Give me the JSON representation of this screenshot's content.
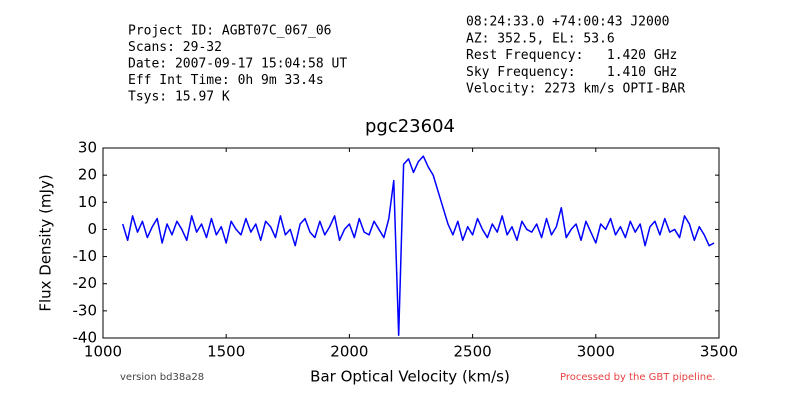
{
  "chart_data": {
    "type": "line",
    "title": "pgc23604",
    "header_left": [
      "Project ID: AGBT07C_067_06",
      "Scans: 29-32",
      "Date: 2007-09-17 15:04:58 UT",
      "Eff Int Time: 0h 9m 33.4s",
      "Tsys: 15.97 K"
    ],
    "header_right": [
      "08:24:33.0 +74:00:43 J2000",
      "AZ: 352.5, EL: 53.6",
      "Rest Frequency:   1.420 GHz",
      "Sky Frequency:    1.410 GHz",
      "Velocity: 2273 km/s OPTI-BAR"
    ],
    "footer_left": "version bd38a28",
    "footer_right": "Processed by the GBT pipeline.",
    "xlabel": "Bar Optical Velocity (km/s)",
    "ylabel": "Flux Density (mJy)",
    "xlim": [
      1000,
      3500
    ],
    "xticks": [
      1000,
      1500,
      2000,
      2500,
      3000,
      3500
    ],
    "ylim": [
      -40,
      30
    ],
    "yticks": [
      -40,
      -30,
      -20,
      -10,
      0,
      10,
      20,
      30
    ],
    "color": "#0000ff",
    "x": [
      1080,
      1100,
      1120,
      1140,
      1160,
      1180,
      1200,
      1220,
      1240,
      1260,
      1280,
      1300,
      1320,
      1340,
      1360,
      1380,
      1400,
      1420,
      1440,
      1460,
      1480,
      1500,
      1520,
      1540,
      1560,
      1580,
      1600,
      1620,
      1640,
      1660,
      1680,
      1700,
      1720,
      1740,
      1760,
      1780,
      1800,
      1820,
      1840,
      1860,
      1880,
      1900,
      1920,
      1940,
      1960,
      1980,
      2000,
      2020,
      2040,
      2060,
      2080,
      2100,
      2120,
      2140,
      2160,
      2180,
      2200,
      2220,
      2240,
      2260,
      2280,
      2300,
      2320,
      2340,
      2360,
      2380,
      2400,
      2420,
      2440,
      2460,
      2480,
      2500,
      2520,
      2540,
      2560,
      2580,
      2600,
      2620,
      2640,
      2660,
      2680,
      2700,
      2720,
      2740,
      2760,
      2780,
      2800,
      2820,
      2840,
      2860,
      2880,
      2900,
      2920,
      2940,
      2960,
      2980,
      3000,
      3020,
      3040,
      3060,
      3080,
      3100,
      3120,
      3140,
      3160,
      3180,
      3200,
      3220,
      3240,
      3260,
      3280,
      3300,
      3320,
      3340,
      3360,
      3380,
      3400,
      3420,
      3440,
      3460,
      3480
    ],
    "values": [
      2,
      -4,
      5,
      -1,
      3,
      -3,
      1,
      4,
      -5,
      2,
      -2,
      3,
      0,
      -4,
      5,
      -1,
      2,
      -3,
      4,
      -2,
      1,
      -5,
      3,
      0,
      -2,
      4,
      -1,
      2,
      -4,
      3,
      1,
      -3,
      5,
      -2,
      0,
      -6,
      2,
      4,
      -1,
      -3,
      3,
      -2,
      1,
      5,
      -4,
      0,
      2,
      -3,
      4,
      -1,
      -2,
      3,
      0,
      -3,
      4,
      18,
      -39,
      24,
      26,
      21,
      25,
      27,
      23,
      20,
      14,
      8,
      2,
      -2,
      3,
      -4,
      1,
      -2,
      4,
      0,
      -3,
      2,
      -1,
      5,
      -2,
      1,
      -4,
      3,
      0,
      -1,
      2,
      -3,
      4,
      -2,
      1,
      8,
      -3,
      0,
      2,
      -4,
      3,
      -1,
      -5,
      2,
      0,
      4,
      -2,
      1,
      -3,
      3,
      -1,
      2,
      -6,
      1,
      3,
      -2,
      4,
      -1,
      0,
      -3,
      5,
      2,
      -4,
      1,
      -2,
      -6,
      -5
    ]
  }
}
